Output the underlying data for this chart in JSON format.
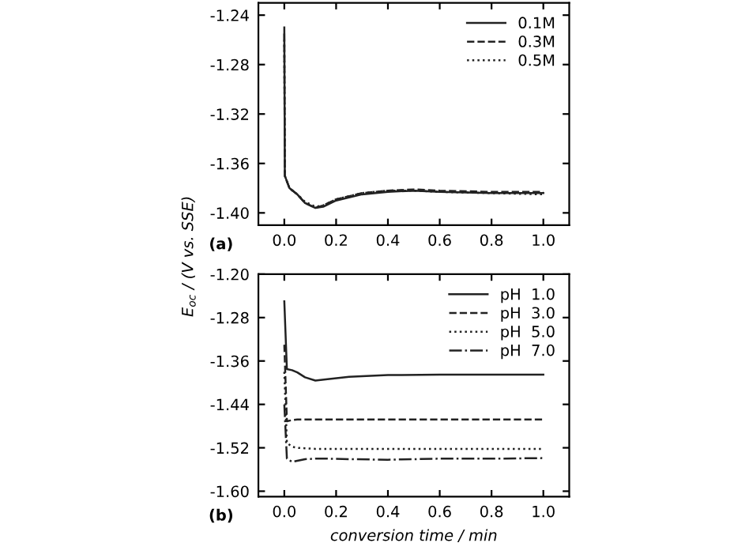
{
  "chart_data": [
    {
      "type": "line",
      "xlim": [
        -0.1,
        1.1
      ],
      "xticks": [
        {
          "value": 0,
          "label": "0.0"
        },
        {
          "value": 0.2,
          "label": "0.2"
        },
        {
          "value": 0.4,
          "label": "0.4"
        },
        {
          "value": 0.6,
          "label": "0.6"
        },
        {
          "value": 0.8,
          "label": "0.8"
        },
        {
          "value": 1.0,
          "label": "1.0"
        }
      ],
      "ylim": [
        -1.41,
        -1.23
      ],
      "yticks": [
        {
          "value": -1.4,
          "label": "-1.40"
        },
        {
          "value": -1.36,
          "label": "-1.36"
        },
        {
          "value": -1.32,
          "label": "-1.32"
        },
        {
          "value": -1.28,
          "label": "-1.28"
        },
        {
          "value": -1.24,
          "label": "-1.24"
        }
      ],
      "legend": "top right",
      "grid": false,
      "annotations": [
        "(a)"
      ],
      "x": [
        0.0,
        0.002,
        0.02,
        0.05,
        0.08,
        0.12,
        0.15,
        0.2,
        0.3,
        0.4,
        0.5,
        0.6,
        0.8,
        1.0
      ],
      "series": [
        {
          "name": "0.1M",
          "color": "#222222",
          "line_style": "solid",
          "values": [
            -1.25,
            -1.37,
            -1.38,
            -1.385,
            -1.392,
            -1.396,
            -1.395,
            -1.39,
            -1.385,
            -1.383,
            -1.382,
            -1.383,
            -1.384,
            -1.384
          ]
        },
        {
          "name": "0.3M",
          "color": "#222222",
          "line_style": "dashed",
          "values": [
            -1.255,
            -1.37,
            -1.38,
            -1.385,
            -1.392,
            -1.396,
            -1.394,
            -1.389,
            -1.384,
            -1.382,
            -1.381,
            -1.382,
            -1.383,
            -1.383
          ]
        },
        {
          "name": "0.5M",
          "color": "#222222",
          "line_style": "dotted",
          "values": [
            -1.26,
            -1.37,
            -1.38,
            -1.385,
            -1.391,
            -1.395,
            -1.394,
            -1.389,
            -1.384,
            -1.382,
            -1.382,
            -1.383,
            -1.384,
            -1.385
          ]
        }
      ]
    },
    {
      "type": "line",
      "xlim": [
        -0.1,
        1.1
      ],
      "xticks": [
        {
          "value": 0,
          "label": "0.0"
        },
        {
          "value": 0.2,
          "label": "0.2"
        },
        {
          "value": 0.4,
          "label": "0.4"
        },
        {
          "value": 0.6,
          "label": "0.6"
        },
        {
          "value": 0.8,
          "label": "0.8"
        },
        {
          "value": 1.0,
          "label": "1.0"
        }
      ],
      "ylim": [
        -1.61,
        -1.2
      ],
      "yticks": [
        {
          "value": -1.6,
          "label": "-1.60"
        },
        {
          "value": -1.52,
          "label": "-1.52"
        },
        {
          "value": -1.44,
          "label": "-1.44"
        },
        {
          "value": -1.36,
          "label": "-1.36"
        },
        {
          "value": -1.28,
          "label": "-1.28"
        },
        {
          "value": -1.2,
          "label": "-1.20"
        }
      ],
      "legend": "top right",
      "grid": false,
      "annotations": [
        "(b)"
      ],
      "xlabel": "conversion time / min",
      "ylabel": "E$_{oc}$ / (V vs. SSE)",
      "x": [
        0.0,
        0.01,
        0.03,
        0.05,
        0.08,
        0.12,
        0.16,
        0.25,
        0.4,
        0.6,
        0.8,
        1.0
      ],
      "series": [
        {
          "name": "pH  1.0",
          "color": "#222222",
          "line_style": "solid",
          "values": [
            -1.25,
            -1.375,
            -1.377,
            -1.381,
            -1.39,
            -1.396,
            -1.394,
            -1.389,
            -1.386,
            -1.385,
            -1.385,
            -1.385
          ]
        },
        {
          "name": "pH  3.0",
          "color": "#222222",
          "line_style": "dashed",
          "values": [
            -1.33,
            -1.471,
            -1.469,
            -1.468,
            -1.468,
            -1.468,
            -1.468,
            -1.468,
            -1.468,
            -1.468,
            -1.468,
            -1.468
          ]
        },
        {
          "name": "pH  5.0",
          "color": "#222222",
          "line_style": "dotted",
          "values": [
            -1.38,
            -1.511,
            -1.518,
            -1.52,
            -1.521,
            -1.522,
            -1.522,
            -1.522,
            -1.522,
            -1.522,
            -1.522,
            -1.522
          ]
        },
        {
          "name": "pH  7.0",
          "color": "#222222",
          "line_style": "dashdot",
          "values": [
            -1.44,
            -1.54,
            -1.546,
            -1.544,
            -1.541,
            -1.54,
            -1.54,
            -1.541,
            -1.542,
            -1.54,
            -1.54,
            -1.539
          ]
        }
      ]
    }
  ]
}
